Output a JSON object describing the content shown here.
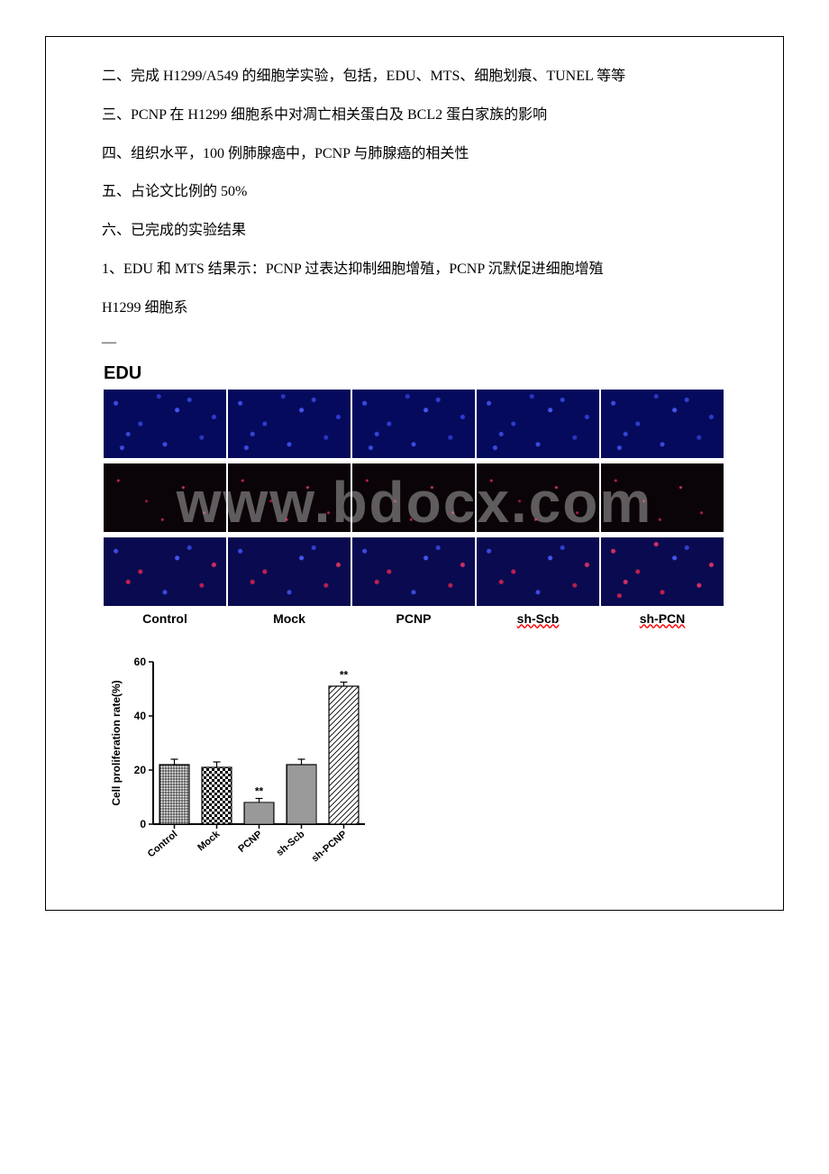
{
  "paragraphs": {
    "p1": "二、完成 H1299/A549 的细胞学实验，包括，EDU、MTS、细胞划痕、TUNEL 等等",
    "p2": "三、PCNP 在 H1299 细胞系中对凋亡相关蛋白及 BCL2 蛋白家族的影响",
    "p3": "四、组织水平，100 例肺腺癌中，PCNP 与肺腺癌的相关性",
    "p4": "五、占论文比例的 50%",
    "p5": "六、已完成的实验结果",
    "p6": "1、EDU 和 MTS 结果示：PCNP 过表达抑制细胞增殖，PCNP 沉默促进细胞增殖",
    "p7": "H1299 细胞系",
    "dash": "—"
  },
  "edu_title": "EDU",
  "watermark": "www.bdocx.com",
  "microscopy": {
    "rows": [
      {
        "type": "blue"
      },
      {
        "type": "dark"
      },
      {
        "type": "mix"
      }
    ],
    "column_labels": [
      "Control",
      "Mock",
      "PCNP",
      "sh-Scb",
      "sh-PCN"
    ],
    "wavy_cols": [
      3,
      4
    ]
  },
  "barchart": {
    "type": "bar",
    "ylabel": "Cell proliferation rate(%)",
    "ylim": [
      0,
      60
    ],
    "ytick_step": 20,
    "yticks": [
      0,
      20,
      40,
      60
    ],
    "categories": [
      "Control",
      "Mock",
      "PCNP",
      "sh-Scb",
      "sh-PCNP"
    ],
    "values": [
      22,
      21,
      8,
      22,
      51
    ],
    "errors": [
      2,
      2,
      1.5,
      2,
      1.5
    ],
    "sig_markers": {
      "2": "**",
      "4": "**"
    },
    "bar_width": 0.7,
    "background_color": "#ffffff",
    "axis_color": "#000000",
    "label_fontsize": 12,
    "axis_line_width": 2,
    "patterns": [
      "grid",
      "checker",
      "horiz",
      "vert",
      "diag"
    ]
  }
}
